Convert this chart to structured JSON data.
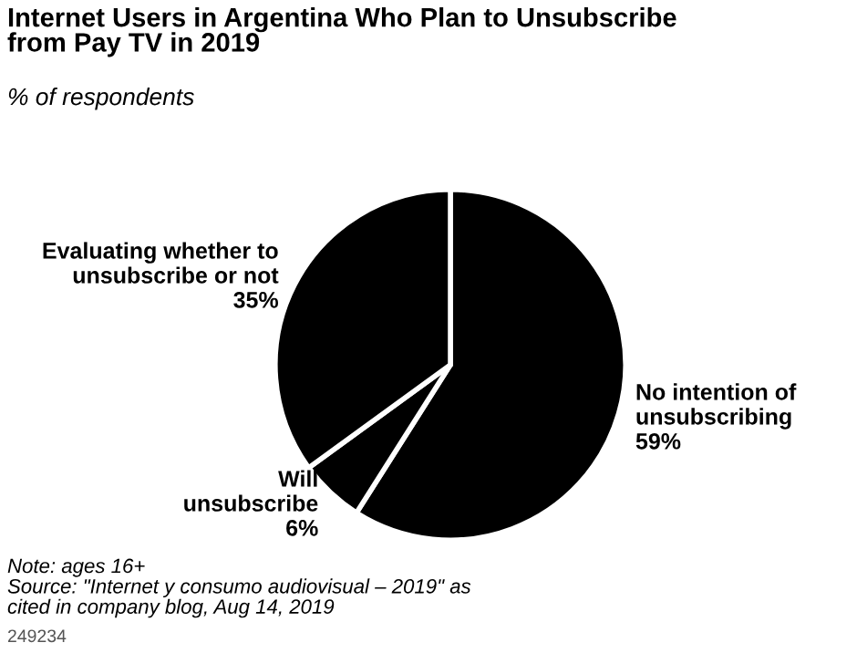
{
  "chart_data": {
    "type": "pie",
    "title": "Internet Users in Argentina Who Plan to Unsubscribe\nfrom Pay TV in 2019",
    "subtitle": "% of respondents",
    "categories": [
      "No intention of\nunsubscribing",
      "Will\nunsubscribe",
      "Evaluating whether to\nunsubscribe or not"
    ],
    "values": [
      59,
      6,
      35
    ],
    "value_labels": [
      "59%",
      "6%",
      "35%"
    ],
    "colors": [
      "#000000",
      "#000000",
      "#000000"
    ],
    "annotations": [
      "Note: ages 16+\nSource: \"Internet y consumo audiovisual – 2019\" as\ncited in company blog, Aug 14, 2019",
      "249234"
    ]
  }
}
